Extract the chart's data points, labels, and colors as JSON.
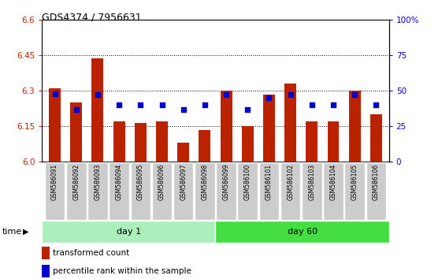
{
  "title": "GDS4374 / 7956631",
  "samples": [
    "GSM586091",
    "GSM586092",
    "GSM586093",
    "GSM586094",
    "GSM586095",
    "GSM586096",
    "GSM586097",
    "GSM586098",
    "GSM586099",
    "GSM586100",
    "GSM586101",
    "GSM586102",
    "GSM586103",
    "GSM586104",
    "GSM586105",
    "GSM586106"
  ],
  "transformed_counts": [
    6.31,
    6.25,
    6.435,
    6.17,
    6.165,
    6.17,
    6.08,
    6.135,
    6.3,
    6.15,
    6.285,
    6.33,
    6.17,
    6.17,
    6.3,
    6.2
  ],
  "percentile_ranks": [
    48,
    37,
    47,
    40,
    40,
    40,
    37,
    40,
    47,
    37,
    45,
    47,
    40,
    40,
    47,
    40
  ],
  "ylim_left": [
    6.0,
    6.6
  ],
  "ylim_right": [
    0,
    100
  ],
  "yticks_left": [
    6.0,
    6.15,
    6.3,
    6.45,
    6.6
  ],
  "yticks_right": [
    0,
    25,
    50,
    75,
    100
  ],
  "bar_color": "#bb2200",
  "dot_color": "#0000cc",
  "day1_color": "#aaeebb",
  "day60_color": "#44dd44",
  "day1_samples": 8,
  "day60_samples": 8,
  "day1_label": "day 1",
  "day60_label": "day 60",
  "time_label": "time",
  "legend_bar_label": "transformed count",
  "legend_dot_label": "percentile rank within the sample",
  "grid_color": "#000000",
  "bar_width": 0.55
}
